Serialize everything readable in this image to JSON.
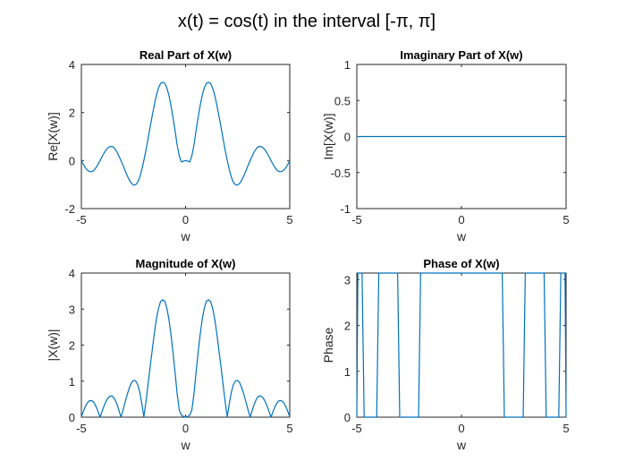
{
  "figure": {
    "title": "x(t) = cos(t) in the interval [-π, π]"
  },
  "colors": {
    "series": "#0072BD"
  },
  "chart_data": [
    {
      "type": "line",
      "title": "Real Part of X(w)",
      "xlabel": "w",
      "ylabel": "Re[X(w)]",
      "xlim": [
        -5,
        5
      ],
      "ylim": [
        -2,
        4
      ],
      "xticks": [
        "-5",
        "0",
        "5"
      ],
      "yticks": [
        "-2",
        "0",
        "2",
        "4"
      ],
      "xtick_values": [
        -5,
        0,
        5
      ],
      "ytick_values": [
        -2,
        0,
        2,
        4
      ],
      "series": [
        {
          "x": [
            -5,
            -4.9,
            -4.8,
            -4.7,
            -4.6,
            -4.5,
            -4.4,
            -4.3,
            -4.2,
            -4.1,
            -4,
            -3.9,
            -3.8,
            -3.7,
            -3.6,
            -3.5,
            -3.4,
            -3.3,
            -3.2,
            -3.1,
            -3,
            -2.9,
            -2.8,
            -2.7,
            -2.6,
            -2.5,
            -2.4,
            -2.3,
            -2.2,
            -2.1,
            -2,
            -1.9,
            -1.8,
            -1.7,
            -1.6,
            -1.5,
            -1.4,
            -1.3,
            -1.2,
            -1.1,
            -1,
            -0.9,
            -0.8,
            -0.7,
            -0.6,
            -0.5,
            -0.4,
            -0.3,
            -0.2,
            -0.1,
            0,
            0.1,
            0.2,
            0.3,
            0.4,
            0.5,
            0.6,
            0.7,
            0.8,
            0.9,
            1,
            1.1,
            1.2,
            1.3,
            1.4,
            1.5,
            1.6,
            1.7,
            1.8,
            1.9,
            2,
            2.1,
            2.2,
            2.3,
            2.4,
            2.5,
            2.6,
            2.7,
            2.8,
            2.9,
            3,
            3.1,
            3.2,
            3.3,
            3.4,
            3.5,
            3.6,
            3.7,
            3.8,
            3.9,
            4,
            4.1,
            4.2,
            4.3,
            4.4,
            4.5,
            4.6,
            4.7,
            4.8,
            4.9,
            5
          ],
          "y": [
            -0.01,
            -0.17,
            -0.31,
            -0.41,
            -0.46,
            -0.46,
            -0.41,
            -0.3,
            -0.16,
            0,
            0.17,
            0.33,
            0.46,
            0.55,
            0.59,
            0.58,
            0.5,
            0.37,
            0.19,
            0,
            -0.2,
            -0.42,
            -0.63,
            -0.81,
            -0.95,
            -1.02,
            -1.01,
            -0.91,
            -0.7,
            -0.38,
            0.01,
            0.43,
            0.91,
            1.4,
            1.86,
            2.32,
            2.72,
            3.02,
            3.21,
            3.26,
            3.22,
            3.03,
            2.72,
            2.29,
            1.78,
            1.22,
            0.63,
            0.19,
            -0.06,
            -0.02,
            0,
            -0.02,
            -0.06,
            0.19,
            0.63,
            1.22,
            1.78,
            2.29,
            2.72,
            3.03,
            3.22,
            3.26,
            3.21,
            3.02,
            2.72,
            2.32,
            1.86,
            1.4,
            0.91,
            0.43,
            0.01,
            -0.38,
            -0.7,
            -0.91,
            -1.01,
            -1.02,
            -0.95,
            -0.81,
            -0.63,
            -0.42,
            -0.2,
            0,
            0.19,
            0.37,
            0.5,
            0.58,
            0.59,
            0.55,
            0.46,
            0.33,
            0.17,
            0,
            -0.16,
            -0.3,
            -0.41,
            -0.46,
            -0.46,
            -0.41,
            -0.31,
            -0.17,
            -0.01
          ]
        }
      ]
    },
    {
      "type": "line",
      "title": "Imaginary Part of X(w)",
      "xlabel": "w",
      "ylabel": "Im[X(w)]",
      "xlim": [
        -5,
        5
      ],
      "ylim": [
        -1,
        1
      ],
      "xticks": [
        "-5",
        "0",
        "5"
      ],
      "yticks": [
        "-1",
        "-0.5",
        "0",
        "0.5",
        "1"
      ],
      "xtick_values": [
        -5,
        0,
        5
      ],
      "ytick_values": [
        -1,
        -0.5,
        0,
        0.5,
        1
      ],
      "series": [
        {
          "x": [
            -5,
            5
          ],
          "y": [
            0,
            0
          ]
        }
      ]
    },
    {
      "type": "line",
      "title": "Magnitude of X(w)",
      "xlabel": "w",
      "ylabel": "|X(w)|",
      "xlim": [
        -5,
        5
      ],
      "ylim": [
        0,
        4
      ],
      "xticks": [
        "-5",
        "0",
        "5"
      ],
      "yticks": [
        "0",
        "1",
        "2",
        "3",
        "4"
      ],
      "xtick_values": [
        -5,
        0,
        5
      ],
      "ytick_values": [
        0,
        1,
        2,
        3,
        4
      ],
      "series": [
        {
          "x": [
            -5,
            -4.9,
            -4.8,
            -4.7,
            -4.6,
            -4.5,
            -4.4,
            -4.3,
            -4.2,
            -4.1,
            -4,
            -3.9,
            -3.8,
            -3.7,
            -3.6,
            -3.5,
            -3.4,
            -3.3,
            -3.2,
            -3.1,
            -3,
            -2.9,
            -2.8,
            -2.7,
            -2.6,
            -2.5,
            -2.4,
            -2.3,
            -2.2,
            -2.1,
            -2,
            -1.9,
            -1.8,
            -1.7,
            -1.6,
            -1.5,
            -1.4,
            -1.3,
            -1.2,
            -1.1,
            -1,
            -0.9,
            -0.8,
            -0.7,
            -0.6,
            -0.5,
            -0.4,
            -0.3,
            -0.2,
            -0.1,
            0,
            0.1,
            0.2,
            0.3,
            0.4,
            0.5,
            0.6,
            0.7,
            0.8,
            0.9,
            1,
            1.1,
            1.2,
            1.3,
            1.4,
            1.5,
            1.6,
            1.7,
            1.8,
            1.9,
            2,
            2.1,
            2.2,
            2.3,
            2.4,
            2.5,
            2.6,
            2.7,
            2.8,
            2.9,
            3,
            3.1,
            3.2,
            3.3,
            3.4,
            3.5,
            3.6,
            3.7,
            3.8,
            3.9,
            4,
            4.1,
            4.2,
            4.3,
            4.4,
            4.5,
            4.6,
            4.7,
            4.8,
            4.9,
            5
          ],
          "y": [
            0.01,
            0.17,
            0.31,
            0.41,
            0.46,
            0.46,
            0.41,
            0.3,
            0.16,
            0,
            0.17,
            0.33,
            0.46,
            0.55,
            0.59,
            0.58,
            0.5,
            0.37,
            0.19,
            0,
            0.2,
            0.42,
            0.63,
            0.81,
            0.95,
            1.02,
            1.01,
            0.91,
            0.7,
            0.38,
            0.01,
            0.43,
            0.91,
            1.4,
            1.86,
            2.32,
            2.72,
            3.02,
            3.21,
            3.26,
            3.22,
            3.03,
            2.72,
            2.29,
            1.78,
            1.22,
            0.63,
            0.19,
            0.06,
            0.02,
            0,
            0.02,
            0.06,
            0.19,
            0.63,
            1.22,
            1.78,
            2.29,
            2.72,
            3.03,
            3.22,
            3.26,
            3.21,
            3.02,
            2.72,
            2.32,
            1.86,
            1.4,
            0.91,
            0.43,
            0.01,
            0.38,
            0.7,
            0.91,
            1.01,
            1.02,
            0.95,
            0.81,
            0.63,
            0.42,
            0.2,
            0,
            0.19,
            0.37,
            0.5,
            0.58,
            0.59,
            0.55,
            0.46,
            0.33,
            0.17,
            0,
            0.16,
            0.3,
            0.41,
            0.46,
            0.46,
            0.41,
            0.31,
            0.17,
            0.01
          ]
        }
      ]
    },
    {
      "type": "line",
      "title": "Phase of X(w)",
      "xlabel": "w",
      "ylabel": "Phase",
      "xlim": [
        -5,
        5
      ],
      "ylim": [
        0,
        3.1416
      ],
      "xticks": [
        "-5",
        "0",
        "5"
      ],
      "yticks": [
        "0",
        "1",
        "2",
        "3"
      ],
      "xtick_values": [
        -5,
        0,
        5
      ],
      "ytick_values": [
        0,
        1,
        2,
        3
      ],
      "series": [
        {
          "x": [
            -5,
            -4.95,
            -4.75,
            -4.65,
            -4.05,
            -3.95,
            -3.05,
            -2.95,
            -2.05,
            -1.95,
            1.95,
            2.05,
            2.95,
            3.05,
            3.95,
            4.05,
            4.65,
            4.75,
            4.95,
            5
          ],
          "y": [
            0,
            3.1416,
            3.1416,
            0,
            0,
            3.1416,
            3.1416,
            0,
            0,
            3.1416,
            3.1416,
            0,
            0,
            3.1416,
            3.1416,
            0,
            0,
            3.1416,
            3.1416,
            0
          ]
        }
      ]
    }
  ]
}
